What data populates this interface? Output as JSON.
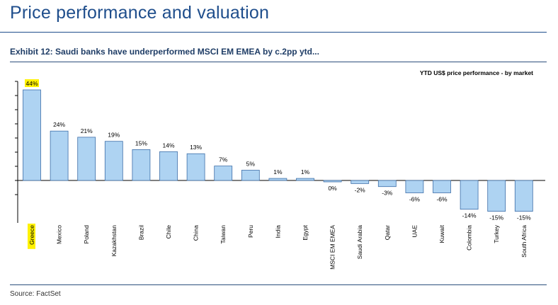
{
  "page": {
    "title": "Price performance and valuation",
    "exhibit_title": "Exhibit 12: Saudi banks have underperformed MSCI EM EMEA by c.2pp ytd...",
    "source": "Source: FactSet"
  },
  "colors": {
    "title": "#1f4e8c",
    "bar_fill": "#aed3f2",
    "bar_stroke": "#3e6fa8",
    "highlight": "#fff200",
    "axis": "#000000"
  },
  "chart_data": {
    "type": "bar",
    "title": "YTD US$ price performance - by market",
    "categories": [
      "Greece",
      "Mexico",
      "Poland",
      "Kazakhstan",
      "Brazil",
      "Chile",
      "China",
      "Taiwan",
      "Peru",
      "India",
      "Egypt",
      "MSCI EM EMEA",
      "Saudi Arabia",
      "Qatar",
      "UAE",
      "Kuwait",
      "Colombia",
      "Turkey",
      "South Africa"
    ],
    "values": [
      44,
      24,
      21,
      19,
      15,
      14,
      13,
      7,
      5,
      1,
      1,
      -0.4,
      -1.5,
      -3,
      -6,
      -6,
      -14,
      -15,
      -15
    ],
    "data_labels": [
      "44%",
      "24%",
      "21%",
      "19%",
      "15%",
      "14%",
      "13%",
      "7%",
      "5%",
      "1%",
      "1%",
      "0%",
      "-2%",
      "-3%",
      "-6%",
      "-6%",
      "-14%",
      "-15%",
      "-15%"
    ],
    "highlighted": [
      "Greece"
    ],
    "ylim": [
      -15,
      44
    ],
    "grid": false,
    "legend": "none"
  }
}
